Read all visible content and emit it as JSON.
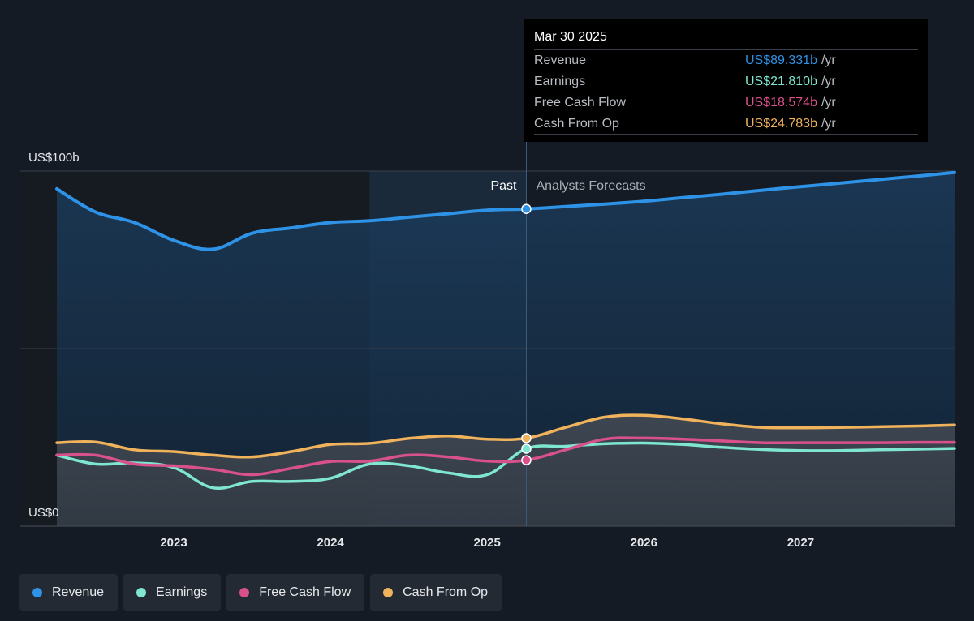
{
  "colors": {
    "background": "#151b24",
    "revenue": "#2e93e6",
    "earnings": "#7fe6cf",
    "free_cash_flow": "#d9518b",
    "cash_from_op": "#f0b25b"
  },
  "labels": {
    "past": "Past",
    "forecast": "Analysts Forecasts"
  },
  "tooltip": {
    "date": "Mar 30 2025",
    "rows": [
      {
        "label": "Revenue",
        "value": "US$89.331b",
        "unit": "/yr"
      },
      {
        "label": "Earnings",
        "value": "US$21.810b",
        "unit": "/yr"
      },
      {
        "label": "Free Cash Flow",
        "value": "US$18.574b",
        "unit": "/yr"
      },
      {
        "label": "Cash From Op",
        "value": "US$24.783b",
        "unit": "/yr"
      }
    ]
  },
  "legend": [
    {
      "label": "Revenue",
      "color": "#2e93e6"
    },
    {
      "label": "Earnings",
      "color": "#7fe6cf"
    },
    {
      "label": "Free Cash Flow",
      "color": "#d9518b"
    },
    {
      "label": "Cash From Op",
      "color": "#f0b25b"
    }
  ],
  "chart_data": {
    "type": "line",
    "title": "",
    "xlabel": "",
    "ylabel": "",
    "ylim": [
      0,
      100
    ],
    "xlim": [
      2022.29,
      2027.99
    ],
    "x_ticks": [
      2023,
      2024,
      2025,
      2026,
      2027
    ],
    "y_tick_labels": [
      {
        "value": 100,
        "label": "US$100b"
      },
      {
        "value": 0,
        "label": "US$0"
      }
    ],
    "gridlines": [
      0,
      50,
      100
    ],
    "past_shaded_start": 2024.25,
    "divider_x": 2025.25,
    "series": [
      {
        "name": "Revenue",
        "key": "revenue",
        "x": [
          2022.25,
          2022.5,
          2022.75,
          2023.0,
          2023.25,
          2023.5,
          2023.75,
          2024.0,
          2024.25,
          2024.5,
          2024.75,
          2025.0,
          2025.25,
          2025.5,
          2025.75,
          2026.0,
          2026.25,
          2026.5,
          2026.75,
          2027.0,
          2027.25,
          2027.5,
          2027.75,
          2028.0
        ],
        "y": [
          95,
          88.5,
          85.5,
          80.5,
          78.0,
          82.5,
          84.0,
          85.5,
          86.0,
          87.0,
          88.0,
          89.0,
          89.331,
          90.0,
          90.7,
          91.5,
          92.5,
          93.5,
          94.6,
          95.6,
          96.6,
          97.6,
          98.6,
          99.6
        ]
      },
      {
        "name": "Earnings",
        "key": "earnings",
        "x": [
          2022.25,
          2022.5,
          2022.75,
          2023.0,
          2023.25,
          2023.5,
          2023.75,
          2024.0,
          2024.25,
          2024.5,
          2024.75,
          2025.0,
          2025.25,
          2025.5,
          2025.75,
          2026.0,
          2026.25,
          2026.5,
          2026.75,
          2027.0,
          2027.25,
          2027.5,
          2027.75,
          2028.0
        ],
        "y": [
          20,
          17.5,
          17.8,
          16.5,
          10.8,
          12.6,
          12.6,
          13.5,
          17.5,
          17.0,
          15.0,
          14.5,
          21.81,
          22.5,
          23.2,
          23.4,
          23.0,
          22.2,
          21.6,
          21.3,
          21.3,
          21.5,
          21.7,
          21.9
        ]
      },
      {
        "name": "Free Cash Flow",
        "key": "free_cash_flow",
        "x": [
          2022.25,
          2022.5,
          2022.75,
          2023.0,
          2023.25,
          2023.5,
          2023.75,
          2024.0,
          2024.25,
          2024.5,
          2024.75,
          2025.0,
          2025.25,
          2025.5,
          2025.75,
          2026.0,
          2026.25,
          2026.5,
          2026.75,
          2027.0,
          2027.25,
          2027.5,
          2027.75,
          2028.0
        ],
        "y": [
          20,
          20,
          17.5,
          17.0,
          16.0,
          14.5,
          16.3,
          18.2,
          18.3,
          20.0,
          19.5,
          18.3,
          18.574,
          21.5,
          24.5,
          24.8,
          24.5,
          24.0,
          23.5,
          23.5,
          23.5,
          23.5,
          23.6,
          23.6
        ]
      },
      {
        "name": "Cash From Op",
        "key": "cash_from_op",
        "x": [
          2022.25,
          2022.5,
          2022.75,
          2023.0,
          2023.25,
          2023.5,
          2023.75,
          2024.0,
          2024.25,
          2024.5,
          2024.75,
          2025.0,
          2025.25,
          2025.5,
          2025.75,
          2026.0,
          2026.25,
          2026.5,
          2026.75,
          2027.0,
          2027.25,
          2027.5,
          2027.75,
          2028.0
        ],
        "y": [
          23.5,
          23.7,
          21.5,
          21.0,
          20.0,
          19.5,
          21.0,
          23.0,
          23.3,
          24.7,
          25.4,
          24.5,
          24.783,
          27.8,
          30.7,
          31.2,
          30.2,
          28.8,
          27.8,
          27.7,
          27.8,
          28.0,
          28.2,
          28.5
        ]
      }
    ],
    "highlight": {
      "x": 2025.25,
      "label": "Mar 30 2025"
    }
  }
}
